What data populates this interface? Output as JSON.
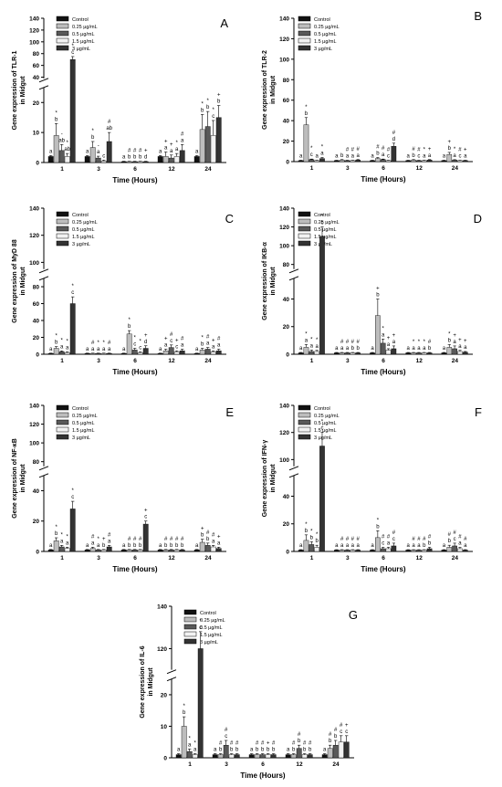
{
  "figure": {
    "colors": {
      "Control": "#111111",
      "0.25 µg/mL": "#bdbdbd",
      "0.5 µg/mL": "#595959",
      "1.5 µg/mL": "#f2f2f2",
      "3 µg/mL": "#333333"
    }
  },
  "chart_data": [
    {
      "panel": "A",
      "type": "bar",
      "ylabel": "Gene expression of TLR-1\nin Midgut",
      "xlabel": "Time (Hours)",
      "categories": [
        "1",
        "3",
        "6",
        "12",
        "24"
      ],
      "yticks_low": [
        "0",
        "10",
        "20"
      ],
      "yticks_high": [
        "40",
        "60",
        "80",
        "100",
        "120",
        "140"
      ],
      "break": {
        "low": [
          0,
          25
        ],
        "high": [
          38,
          140
        ]
      },
      "legend": [
        "Control",
        "0.25 µg/mL",
        "0.5 µg/mL",
        "1.5 µg/mL",
        "3 µg/mL"
      ],
      "series": [
        {
          "name": "Control",
          "values": [
            2,
            2,
            0.3,
            2,
            2
          ],
          "errors": [
            0.3,
            0.3,
            0.1,
            0.3,
            0.3
          ]
        },
        {
          "name": "0.25 µg/mL",
          "values": [
            9,
            5,
            0.3,
            2,
            11
          ],
          "errors": [
            4,
            2,
            0.1,
            1.5,
            5
          ]
        },
        {
          "name": "0.5 µg/mL",
          "values": [
            4,
            1.5,
            0.3,
            1.5,
            12
          ],
          "errors": [
            2,
            0.6,
            0.1,
            1,
            5
          ]
        },
        {
          "name": "1.5 µg/mL",
          "values": [
            2,
            0.5,
            0.3,
            2,
            9
          ],
          "errors": [
            1,
            0.3,
            0.1,
            1,
            5
          ]
        },
        {
          "name": "3 µg/mL",
          "values": [
            70,
            7,
            0.3,
            4,
            15
          ],
          "errors": [
            5,
            3,
            0.1,
            2,
            4
          ]
        }
      ],
      "annotations": [
        [
          "a",
          "*\nb",
          "-\nab",
          "*\nab",
          "*\nc"
        ],
        [
          "a",
          "*\nb",
          "-\na",
          "c",
          "#\nab"
        ],
        [
          "a",
          "#\nb",
          "#\nb",
          "#\nb",
          "+\nd"
        ],
        [
          "a",
          "+\na",
          "+\na",
          "*\na",
          "#\na"
        ],
        [
          "a",
          "*\nb",
          "*\nb",
          "*\nc",
          "+\nb"
        ]
      ]
    },
    {
      "panel": "B",
      "type": "bar",
      "ylabel": "Gene expression of TLR-2\nin Midgut",
      "xlabel": "Time (Hours)",
      "categories": [
        "1",
        "3",
        "6",
        "12",
        "24"
      ],
      "yticks": [
        "0",
        "20",
        "40",
        "60",
        "80",
        "100",
        "120",
        "140"
      ],
      "ylim": [
        0,
        140
      ],
      "legend": [
        "Control",
        "0.25 µg/mL",
        "0.5 µg/mL",
        "1.5 µg/mL",
        "3 µg/mL"
      ],
      "series": [
        {
          "name": "Control",
          "values": [
            1,
            1,
            1,
            1,
            1
          ],
          "errors": [
            0.3,
            0.3,
            0.3,
            0.3,
            0.3
          ]
        },
        {
          "name": "0.25 µg/mL",
          "values": [
            36,
            1.5,
            3,
            1.5,
            7
          ],
          "errors": [
            7,
            0.5,
            1,
            0.5,
            2
          ]
        },
        {
          "name": "0.5 µg/mL",
          "values": [
            2,
            1,
            2,
            1,
            1.5
          ],
          "errors": [
            0.5,
            0.3,
            0.5,
            0.3,
            0.4
          ]
        },
        {
          "name": "1.5 µg/mL",
          "values": [
            1,
            1,
            1,
            1,
            1
          ],
          "errors": [
            0.3,
            0.3,
            0.3,
            0.3,
            0.3
          ]
        },
        {
          "name": "3 µg/mL",
          "values": [
            3,
            1.5,
            15,
            1.5,
            1
          ],
          "errors": [
            1,
            0.5,
            3,
            0.5,
            0.3
          ]
        }
      ],
      "annotations": [
        [
          "a",
          "*\nb",
          "*\nc",
          "a",
          "*\na"
        ],
        [
          "a",
          "b",
          "#\na",
          "#\na",
          "#\na"
        ],
        [
          "a",
          "#\nb",
          "#\na",
          "#\nc",
          "#\nd"
        ],
        [
          "a",
          "#\nb",
          "#\nc",
          "*\na",
          "+\na"
        ],
        [
          "a",
          "+\nb",
          "*\na",
          "#\nc",
          "+\na"
        ]
      ]
    },
    {
      "panel": "C",
      "type": "bar",
      "ylabel": "Gene expression of MyD 88\nin Midgut",
      "xlabel": "Time (Hours)",
      "categories": [
        "1",
        "3",
        "6",
        "12",
        "24"
      ],
      "yticks_low": [
        "0",
        "20",
        "40",
        "60",
        "80"
      ],
      "yticks_high": [
        "100",
        "120",
        "140"
      ],
      "break": {
        "low": [
          0,
          90
        ],
        "high": [
          95,
          140
        ]
      },
      "legend": [
        "Control",
        "0.25 µg/mL",
        "0.5 µg/mL",
        "1.5 µg/mL",
        "3 µg/mL"
      ],
      "series": [
        {
          "name": "Control",
          "values": [
            1,
            1,
            1,
            1,
            1
          ],
          "errors": [
            0.3,
            0.3,
            0.3,
            0.3,
            0.3
          ]
        },
        {
          "name": "0.25 µg/mL",
          "values": [
            7,
            1,
            24,
            4,
            5
          ],
          "errors": [
            2,
            0.3,
            4,
            2,
            2
          ]
        },
        {
          "name": "0.5 µg/mL",
          "values": [
            3,
            1,
            5,
            8,
            6
          ],
          "errors": [
            1,
            0.3,
            2,
            3,
            2
          ]
        },
        {
          "name": "1.5 µg/mL",
          "values": [
            2,
            1,
            2,
            3,
            3
          ],
          "errors": [
            0.8,
            0.3,
            0.8,
            1,
            1
          ]
        },
        {
          "name": "3 µg/mL",
          "values": [
            60,
            1,
            7,
            4,
            4
          ],
          "errors": [
            8,
            0.3,
            3,
            2,
            2
          ]
        }
      ],
      "annotations": [
        [
          "a",
          "*\nb",
          "*\na",
          "*\na",
          "*\nc"
        ],
        [
          "a",
          "#\na",
          "*\na",
          "*\na",
          "#\na"
        ],
        [
          "a",
          "*\nb",
          "*\nc",
          "*\nc",
          "+\nd"
        ],
        [
          "a",
          "+\na",
          "#\nc",
          "+\nc",
          "#\na"
        ],
        [
          "a",
          "*\nb",
          "#\na",
          "+\na",
          "#\na"
        ]
      ]
    },
    {
      "panel": "D",
      "type": "bar",
      "ylabel": "Gene expression of IKB-α\nin Midgut",
      "xlabel": "Time (Hours)",
      "categories": [
        "1",
        "3",
        "6",
        "12",
        "24"
      ],
      "yticks_low": [
        "0",
        "20",
        "40"
      ],
      "yticks_high": [
        "80",
        "100",
        "120",
        "140"
      ],
      "break": {
        "low": [
          0,
          55
        ],
        "high": [
          75,
          140
        ]
      },
      "legend": [
        "Control",
        "0.25 µg/mL",
        "0.5 µg/mL",
        "1.5 µg/mL",
        "3 µg/mL"
      ],
      "series": [
        {
          "name": "Control",
          "values": [
            1,
            1,
            1,
            1,
            1
          ],
          "errors": [
            0.3,
            0.3,
            0.3,
            0.3,
            0.3
          ]
        },
        {
          "name": "0.25 µg/mL",
          "values": [
            5,
            1,
            28,
            1,
            5
          ],
          "errors": [
            2,
            0.3,
            12,
            0.3,
            2
          ]
        },
        {
          "name": "0.5 µg/mL",
          "values": [
            2,
            1,
            8,
            1,
            4
          ],
          "errors": [
            1,
            0.3,
            3,
            0.3,
            2
          ]
        },
        {
          "name": "1.5 µg/mL",
          "values": [
            2,
            1,
            3,
            1,
            2
          ],
          "errors": [
            0.8,
            0.3,
            1,
            0.3,
            0.8
          ]
        },
        {
          "name": "3 µg/mL",
          "values": [
            110,
            1,
            4,
            1,
            1.5
          ],
          "errors": [
            10,
            0.3,
            2,
            0.3,
            0.5
          ]
        }
      ],
      "annotations": [
        [
          "a",
          "*\na",
          "*\na",
          "*\na",
          "*\nc"
        ],
        [
          "a",
          "#\na",
          "#\na",
          "#\nb",
          "#\nb"
        ],
        [
          "a",
          "+\nb",
          "*\na",
          "+\na",
          "+\na"
        ],
        [
          "a",
          "*\na",
          "*\na",
          "*\na",
          "#\nb"
        ],
        [
          "a",
          "*\nb",
          "+\na",
          "+\na",
          "+\na"
        ]
      ]
    },
    {
      "panel": "E",
      "type": "bar",
      "ylabel": "Gene expression of NF-κB\nin Midgut",
      "xlabel": "Time (Hours)",
      "categories": [
        "1",
        "3",
        "6",
        "12",
        "24"
      ],
      "yticks_low": [
        "0",
        "20",
        "40"
      ],
      "yticks_high": [
        "80",
        "100",
        "120",
        "140"
      ],
      "break": {
        "low": [
          0,
          50
        ],
        "high": [
          75,
          140
        ]
      },
      "legend": [
        "Control",
        "0.25 µg/mL",
        "0.5 µg/mL",
        "1.5 µg/mL",
        "3 µg/mL"
      ],
      "series": [
        {
          "name": "Control",
          "values": [
            1,
            1,
            1,
            1,
            1
          ],
          "errors": [
            0.3,
            0.3,
            0.3,
            0.3,
            0.3
          ]
        },
        {
          "name": "0.25 µg/mL",
          "values": [
            7,
            2,
            1,
            1,
            6
          ],
          "errors": [
            2,
            0.8,
            0.3,
            0.3,
            2
          ]
        },
        {
          "name": "0.5 µg/mL",
          "values": [
            3,
            1,
            1,
            1,
            4
          ],
          "errors": [
            1,
            0.3,
            0.3,
            0.3,
            1.5
          ]
        },
        {
          "name": "1.5 µg/mL",
          "values": [
            2,
            1,
            1,
            1,
            3
          ],
          "errors": [
            0.8,
            0.3,
            0.3,
            0.3,
            1
          ]
        },
        {
          "name": "3 µg/mL",
          "values": [
            28,
            3,
            18,
            1,
            2
          ],
          "errors": [
            5,
            1,
            2,
            0.3,
            0.8
          ]
        }
      ],
      "annotations": [
        [
          "a",
          "*\nb",
          "*\na",
          "*\na",
          "*\nc"
        ],
        [
          "a",
          "#\na",
          "*\na",
          "+\nb",
          "#\na"
        ],
        [
          "a",
          "#\nb",
          "#\nb",
          "#\nb",
          "+\nc"
        ],
        [
          "a",
          "#\nb",
          "#\nb",
          "#\nb",
          "#\nb"
        ],
        [
          "a",
          "+\nb",
          "#\nb",
          "#\na",
          "+\na"
        ]
      ]
    },
    {
      "panel": "F",
      "type": "bar",
      "ylabel": "Gene expression of IFN-γ\nin Midgut",
      "xlabel": "Time (Hours)",
      "categories": [
        "1",
        "3",
        "6",
        "12",
        "24"
      ],
      "yticks_low": [
        "0",
        "20",
        "40"
      ],
      "yticks_high": [
        "100",
        "120",
        "140"
      ],
      "break": {
        "low": [
          0,
          55
        ],
        "high": [
          95,
          140
        ]
      },
      "legend": [
        "Control",
        "0.25 µg/mL",
        "0.5 µg/mL",
        "1.5 µg/mL",
        "3 µg/mL"
      ],
      "series": [
        {
          "name": "Control",
          "values": [
            1,
            1,
            1,
            1,
            1
          ],
          "errors": [
            0.3,
            0.3,
            0.3,
            0.3,
            0.3
          ]
        },
        {
          "name": "0.25 µg/mL",
          "values": [
            8,
            1,
            10,
            1,
            3
          ],
          "errors": [
            4,
            0.3,
            5,
            0.3,
            1.5
          ]
        },
        {
          "name": "0.5 µg/mL",
          "values": [
            5,
            1,
            2,
            1,
            4
          ],
          "errors": [
            2,
            0.3,
            1,
            0.3,
            2
          ]
        },
        {
          "name": "1.5 µg/mL",
          "values": [
            3,
            1,
            2,
            1,
            2
          ],
          "errors": [
            1.5,
            0.3,
            1,
            0.3,
            1
          ]
        },
        {
          "name": "3 µg/mL",
          "values": [
            110,
            1,
            4,
            2,
            1
          ],
          "errors": [
            10,
            0.3,
            2,
            1,
            0.3
          ]
        }
      ],
      "annotations": [
        [
          "a",
          "*\nb",
          "*\nb",
          "*\nb",
          "*\nc"
        ],
        [
          "a",
          "#\na",
          "#\na",
          "#\na",
          "#\na"
        ],
        [
          "a",
          "*\nb",
          "#\nc",
          "#\na",
          "#\nc"
        ],
        [
          "a",
          "#\na",
          "#\na",
          "#\nb",
          "#\nb"
        ],
        [
          "a",
          "#\nb",
          "#\nc",
          "#\na",
          "#\na"
        ]
      ]
    },
    {
      "panel": "G",
      "type": "bar",
      "ylabel": "Gene expression of IL-6\nin Midgut",
      "xlabel": "Time (Hours)",
      "categories": [
        "1",
        "3",
        "6",
        "12",
        "24"
      ],
      "yticks_low": [
        "0",
        "10",
        "20"
      ],
      "yticks_high": [
        "120",
        "140"
      ],
      "break": {
        "low": [
          0,
          25
        ],
        "high": [
          110,
          140
        ]
      },
      "legend": [
        "Control",
        "0.25 µg/mL",
        "0.5 µg/mL",
        "1.5 µg/mL",
        "3 µg/mL"
      ],
      "series": [
        {
          "name": "Control",
          "values": [
            1,
            1,
            1,
            1,
            1
          ],
          "errors": [
            0.3,
            0.3,
            0.3,
            0.3,
            0.3
          ]
        },
        {
          "name": "0.25 µg/mL",
          "values": [
            10,
            1,
            1,
            1,
            3
          ],
          "errors": [
            3,
            0.3,
            0.3,
            0.3,
            1
          ]
        },
        {
          "name": "0.5 µg/mL",
          "values": [
            2,
            4,
            1,
            3,
            4
          ],
          "errors": [
            0.8,
            1.5,
            0.3,
            1,
            1.5
          ]
        },
        {
          "name": "1.5 µg/mL",
          "values": [
            1,
            1,
            1,
            1,
            5
          ],
          "errors": [
            0.3,
            0.3,
            0.3,
            0.3,
            2
          ]
        },
        {
          "name": "3 µg/mL",
          "values": [
            120,
            1,
            1,
            1,
            5
          ],
          "errors": [
            8,
            0.3,
            0.3,
            0.3,
            2
          ]
        }
      ],
      "annotations": [
        [
          "a",
          "*\nb",
          "*\na",
          "*\na",
          "*\nc"
        ],
        [
          "a",
          "#\nb",
          "#\nc",
          "#\nb",
          "#\nb"
        ],
        [
          "a",
          "#\nb",
          "#\nb",
          "+\nb",
          "#\nb"
        ],
        [
          "a",
          "#\nb",
          "#\nb",
          "#\nb",
          "#\nb"
        ],
        [
          "a",
          "#\nb",
          "#\nb",
          "#\nc",
          "+\nc"
        ]
      ]
    }
  ]
}
